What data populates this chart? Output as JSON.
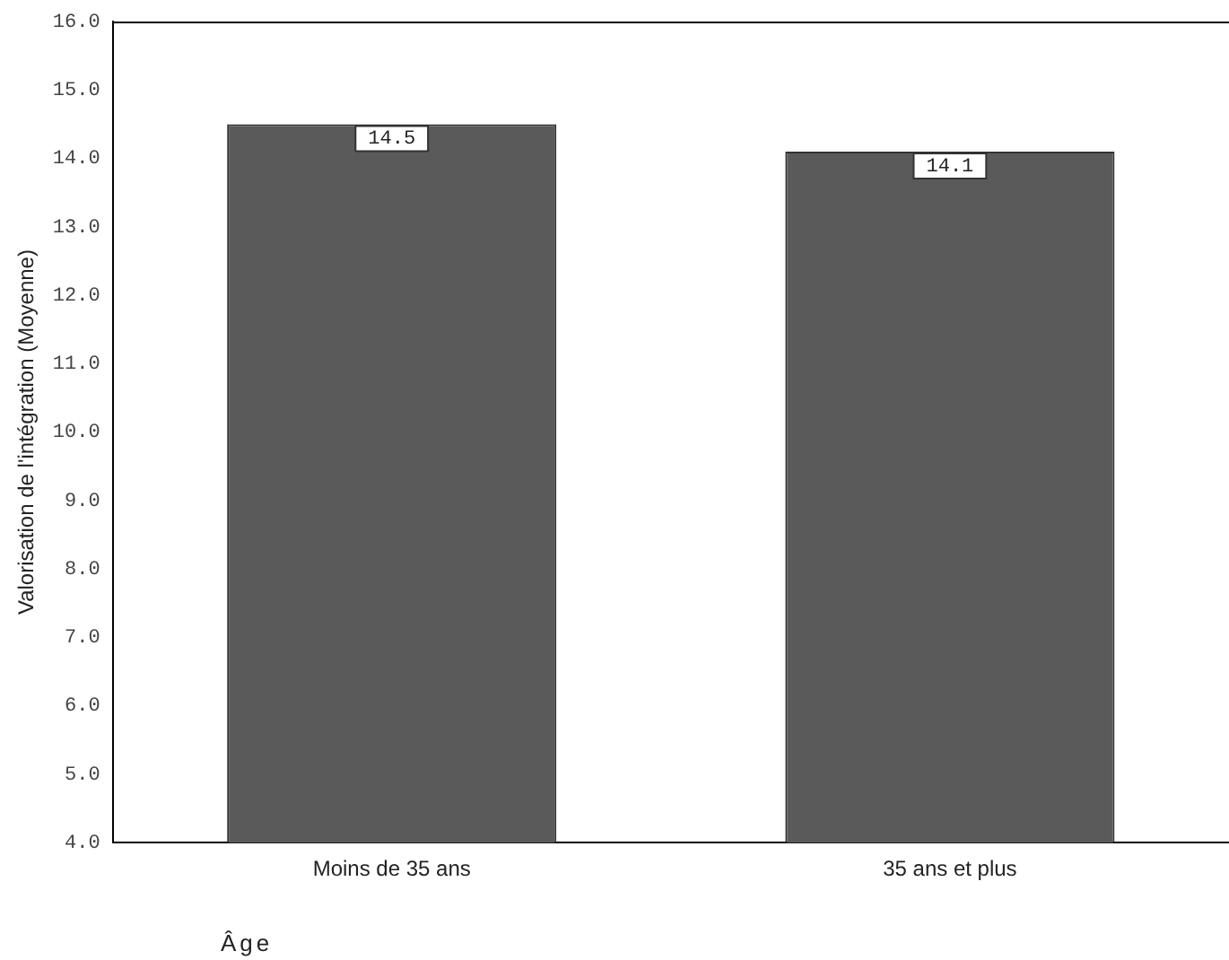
{
  "chart_data": {
    "type": "bar",
    "xlabel": "Âge",
    "ylabel": "Valorisation de l'intégration (Moyenne)",
    "categories": [
      "Moins de 35 ans",
      "35 ans et plus"
    ],
    "values": [
      14.5,
      14.1
    ],
    "color": "#5a5a5a",
    "data_labels": true,
    "grid": false,
    "ylim": [
      4,
      16
    ],
    "yticks": [
      {
        "value": 4,
        "label": "4.0"
      },
      {
        "value": 5,
        "label": "5.0"
      },
      {
        "value": 6,
        "label": "6.0"
      },
      {
        "value": 7,
        "label": "7.0"
      },
      {
        "value": 8,
        "label": "8.0"
      },
      {
        "value": 9,
        "label": "9.0"
      },
      {
        "value": 10,
        "label": "10.0"
      },
      {
        "value": 11,
        "label": "11.0"
      },
      {
        "value": 12,
        "label": "12.0"
      },
      {
        "value": 13,
        "label": "13.0"
      },
      {
        "value": 14,
        "label": "14.0"
      },
      {
        "value": 15,
        "label": "15.0"
      },
      {
        "value": 16,
        "label": "16.0"
      }
    ]
  }
}
